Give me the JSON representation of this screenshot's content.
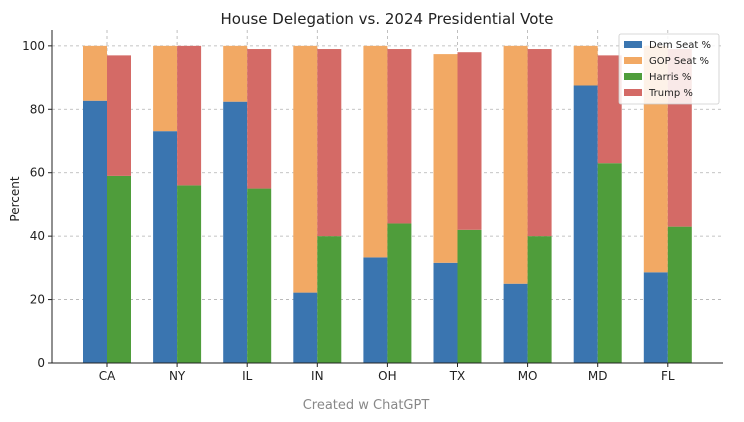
{
  "chart_data": {
    "type": "bar",
    "title": "House Delegation vs. 2024 Presidential Vote",
    "xlabel": "",
    "ylabel": "Percent",
    "ylim": [
      0,
      105
    ],
    "yticks": [
      0,
      20,
      40,
      60,
      80,
      100
    ],
    "categories": [
      "CA",
      "NY",
      "IL",
      "IN",
      "OH",
      "TX",
      "MO",
      "MD",
      "FL"
    ],
    "stacks": [
      {
        "position": "left",
        "series": [
          {
            "name": "Dem Seat %",
            "color": "#3a75b0",
            "values": [
              82.7,
              73.1,
              82.4,
              22.2,
              33.3,
              31.6,
              25.0,
              87.5,
              28.6
            ]
          },
          {
            "name": "GOP Seat %",
            "color": "#f2a964",
            "values": [
              17.3,
              26.9,
              17.6,
              77.8,
              66.7,
              65.8,
              75.0,
              12.5,
              71.4
            ]
          }
        ]
      },
      {
        "position": "right",
        "series": [
          {
            "name": "Harris %",
            "color": "#4f9d3b",
            "values": [
              59,
              56,
              55,
              40,
              44,
              42,
              40,
              63,
              43
            ]
          },
          {
            "name": "Trump %",
            "color": "#d46a66",
            "values": [
              38,
              44,
              44,
              59,
              55,
              56,
              59,
              34,
              56
            ]
          }
        ]
      }
    ],
    "legend": {
      "placement": "top-right",
      "entries": [
        {
          "label": "Dem Seat %",
          "color": "#3a75b0"
        },
        {
          "label": "GOP Seat %",
          "color": "#f2a964"
        },
        {
          "label": "Harris %",
          "color": "#4f9d3b"
        },
        {
          "label": "Trump %",
          "color": "#d46a66"
        }
      ]
    },
    "grid": true
  },
  "footer": {
    "credit": "Created w ChatGPT"
  }
}
